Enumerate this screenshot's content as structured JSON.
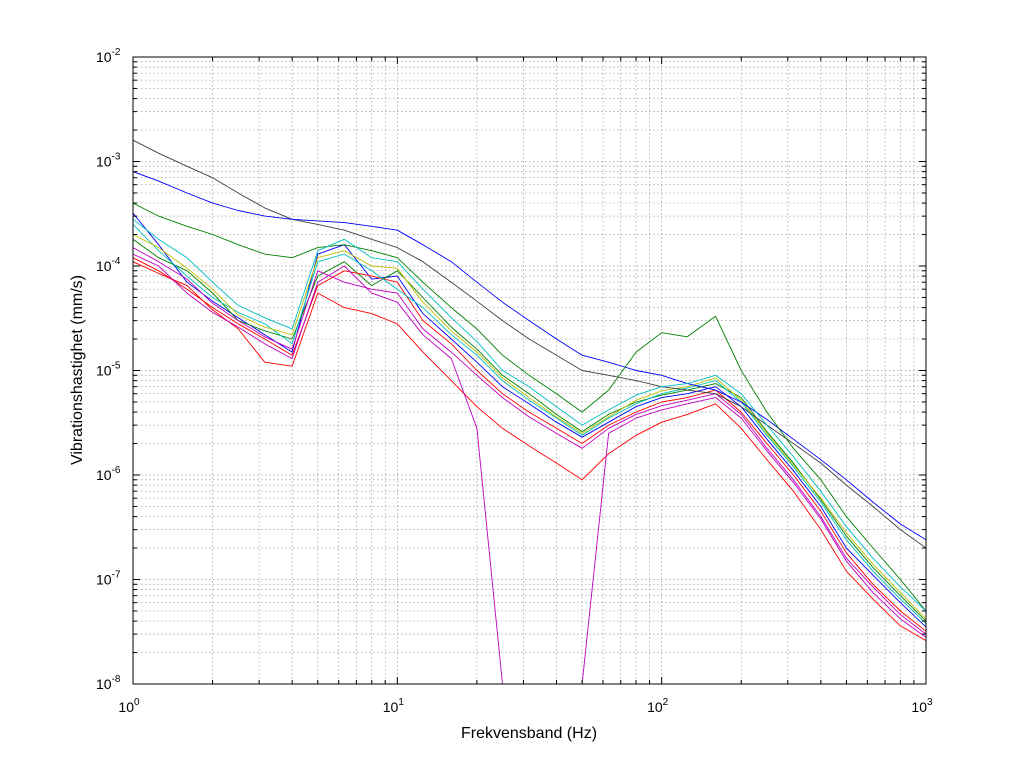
{
  "chart_data": {
    "type": "line",
    "title": "",
    "xlabel": "Frekvensband (Hz)",
    "ylabel": "Vibrationshastighet (mm/s)",
    "xscale": "log",
    "yscale": "log",
    "xlim": [
      1,
      1000
    ],
    "ylim": [
      1e-08,
      0.01
    ],
    "grid": true,
    "grid_style": "dotted, major and minor",
    "legend": "none",
    "x_ticks": [
      {
        "base": "10",
        "exp": "0"
      },
      {
        "base": "10",
        "exp": "1"
      },
      {
        "base": "10",
        "exp": "2"
      },
      {
        "base": "10",
        "exp": "3"
      }
    ],
    "y_ticks": [
      {
        "base": "10",
        "exp": "-8"
      },
      {
        "base": "10",
        "exp": "-7"
      },
      {
        "base": "10",
        "exp": "-6"
      },
      {
        "base": "10",
        "exp": "-5"
      },
      {
        "base": "10",
        "exp": "-4"
      },
      {
        "base": "10",
        "exp": "-3"
      },
      {
        "base": "10",
        "exp": "-2"
      }
    ],
    "x": [
      1,
      1.25,
      1.6,
      2,
      2.5,
      3.15,
      4,
      5,
      6.3,
      8,
      10,
      12.5,
      16,
      20,
      25,
      31.5,
      40,
      50,
      63,
      80,
      100,
      125,
      160,
      200,
      250,
      315,
      400,
      500,
      630,
      800,
      1000
    ],
    "series_colors": [
      "#0000ff",
      "#008000",
      "#ff0000",
      "#00bfbf",
      "#bf00bf",
      "#bfbf00",
      "#404040"
    ],
    "series": [
      {
        "values": [
          0.00032,
          0.00016,
          7e-05,
          4.6e-05,
          3.2e-05,
          2.2e-05,
          1.5e-05,
          0.00013,
          0.00016,
          7.5e-05,
          8e-05,
          3.5e-05,
          2e-05,
          1.2e-05,
          7e-06,
          4.8e-06,
          3.2e-06,
          2.3e-06,
          3.2e-06,
          4.5e-06,
          5.5e-06,
          6e-06,
          7e-06,
          4.5e-06,
          2.2e-06,
          1.1e-06,
          5e-07,
          2e-07,
          1.1e-07,
          6e-08,
          3.5e-08
        ]
      },
      {
        "values": [
          0.00018,
          0.00012,
          9e-05,
          5.5e-05,
          3e-05,
          2.4e-05,
          2e-05,
          8e-05,
          0.00011,
          6.5e-05,
          9e-05,
          5e-05,
          2.6e-05,
          1.6e-05,
          9e-06,
          6e-06,
          3.8e-06,
          2.6e-06,
          3.8e-06,
          5e-06,
          5.8e-06,
          6.5e-06,
          7.5e-06,
          5.5e-06,
          2.6e-06,
          1.3e-06,
          5.8e-07,
          2.6e-07,
          1.3e-07,
          7e-08,
          4e-08
        ]
      },
      {
        "values": [
          0.00012,
          9e-05,
          6e-05,
          4e-05,
          2.8e-05,
          2e-05,
          1.4e-05,
          6.5e-05,
          9e-05,
          8e-05,
          7e-05,
          3e-05,
          1.8e-05,
          1e-05,
          6e-06,
          4e-06,
          2.8e-06,
          2e-06,
          3e-06,
          4e-06,
          5e-06,
          5.5e-06,
          6.5e-06,
          4e-06,
          2e-06,
          1e-06,
          4.5e-07,
          1.8e-07,
          9e-08,
          5e-08,
          3.2e-08
        ]
      },
      {
        "values": [
          0.00025,
          0.00014,
          8e-05,
          5e-05,
          3.6e-05,
          2.8e-05,
          1.8e-05,
          0.00011,
          0.00013,
          9e-05,
          6e-05,
          4e-05,
          2.2e-05,
          1.4e-05,
          8e-06,
          5.2e-06,
          3.5e-06,
          2.4e-06,
          3.5e-06,
          4.8e-06,
          6e-06,
          6.8e-06,
          8e-06,
          5e-06,
          2.4e-06,
          1.2e-06,
          5.5e-07,
          2.4e-07,
          1.2e-07,
          6.5e-08,
          3.8e-08
        ]
      },
      {
        "values": [
          0.00015,
          0.00011,
          7.5e-05,
          4.4e-05,
          3e-05,
          2.1e-05,
          1.6e-05,
          9e-05,
          7e-05,
          6e-05,
          5.5e-05,
          2.5e-05,
          1.5e-05,
          9e-06,
          5.5e-06,
          3.6e-06,
          2.5e-06,
          1.8e-06,
          2.8e-06,
          3.8e-06,
          4.6e-06,
          5.2e-06,
          6e-06,
          3.8e-06,
          1.8e-06,
          9e-07,
          4e-07,
          1.6e-07,
          8.5e-08,
          4.6e-08,
          3e-08
        ]
      },
      {
        "values": [
          0.0002,
          0.00015,
          9.5e-05,
          6e-05,
          3.4e-05,
          2.6e-05,
          2.2e-05,
          0.00012,
          0.00014,
          0.0001,
          9.5e-05,
          4.5e-05,
          2.4e-05,
          1.5e-05,
          8.5e-06,
          5.5e-06,
          3.6e-06,
          2.5e-06,
          3.6e-06,
          5.2e-06,
          6.4e-06,
          7e-06,
          8.5e-06,
          5.2e-06,
          2.5e-06,
          1.25e-06,
          6e-07,
          2.8e-07,
          1.4e-07,
          7.5e-08,
          4.2e-08
        ]
      },
      {
        "values": [
          0.0016,
          0.0012,
          0.0009,
          0.0007,
          0.0005,
          0.00036,
          0.00028,
          0.00025,
          0.00022,
          0.00018,
          0.00015,
          0.00011,
          7e-05,
          4.6e-05,
          3e-05,
          2e-05,
          1.4e-05,
          1e-05,
          9e-06,
          8e-06,
          7e-06,
          6.5e-06,
          6e-06,
          4.5e-06,
          3e-06,
          2e-06,
          1.3e-06,
          8e-07,
          5e-07,
          3e-07,
          2e-07
        ]
      },
      {
        "values": [
          0.0008,
          0.00065,
          0.0005,
          0.0004,
          0.00034,
          0.0003,
          0.00028,
          0.00027,
          0.00026,
          0.00024,
          0.00022,
          0.00016,
          0.00011,
          7e-05,
          4.5e-05,
          3e-05,
          2e-05,
          1.4e-05,
          1.2e-05,
          1e-05,
          9e-06,
          7.5e-06,
          6.5e-06,
          5e-06,
          3.4e-06,
          2.2e-06,
          1.4e-06,
          9e-07,
          5.5e-07,
          3.4e-07,
          2.4e-07
        ]
      },
      {
        "values": [
          0.0004,
          0.0003,
          0.00024,
          0.0002,
          0.00016,
          0.00013,
          0.00012,
          0.00015,
          0.00016,
          0.00014,
          0.00012,
          7e-05,
          4e-05,
          2.5e-05,
          1.4e-05,
          9e-06,
          6e-06,
          4e-06,
          6.5e-06,
          1.5e-05,
          2.3e-05,
          2.1e-05,
          3.3e-05,
          1e-05,
          4e-06,
          1.8e-06,
          9e-07,
          4e-07,
          2e-07,
          1e-07,
          5e-08
        ]
      },
      {
        "values": [
          0.00011,
          8.5e-05,
          6.5e-05,
          3.8e-05,
          2.5e-05,
          1.2e-05,
          1.1e-05,
          5.5e-05,
          4e-05,
          3.5e-05,
          2.8e-05,
          1.5e-05,
          8e-06,
          4.5e-06,
          2.8e-06,
          1.9e-06,
          1.3e-06,
          9e-07,
          1.6e-06,
          2.4e-06,
          3.2e-06,
          3.8e-06,
          4.8e-06,
          2.8e-06,
          1.4e-06,
          7e-07,
          3e-07,
          1.2e-07,
          6.5e-08,
          3.6e-08,
          2.6e-08
        ]
      },
      {
        "values": [
          0.00028,
          0.00018,
          0.00012,
          7e-05,
          4.2e-05,
          3.2e-05,
          2.5e-05,
          0.00014,
          0.00018,
          0.00012,
          0.00011,
          6e-05,
          3.2e-05,
          1.9e-05,
          1e-05,
          7e-06,
          4.5e-06,
          3e-06,
          4.2e-06,
          5.8e-06,
          7e-06,
          7.5e-06,
          9e-06,
          6e-06,
          3e-06,
          1.5e-06,
          7e-07,
          3.2e-07,
          1.6e-07,
          8.5e-08,
          5e-08
        ]
      },
      {
        "values": [
          0.00013,
          0.0001,
          5.5e-05,
          3.6e-05,
          2.6e-05,
          1.8e-05,
          1.3e-05,
          7e-05,
          0.0001,
          5.5e-05,
          4.5e-05,
          2.2e-05,
          1.3e-05,
          2.8e-06,
          1e-08,
          1e-08,
          1e-08,
          1e-08,
          2.5e-06,
          3.5e-06,
          4.2e-06,
          4.8e-06,
          5.5e-06,
          3.5e-06,
          1.7e-06,
          8.5e-07,
          3.8e-07,
          1.5e-07,
          7.5e-08,
          4.2e-08,
          2.8e-08
        ]
      }
    ]
  }
}
